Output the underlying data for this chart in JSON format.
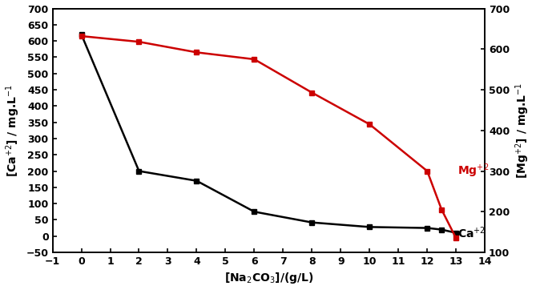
{
  "ca_x": [
    0,
    2,
    4,
    6,
    8,
    10,
    12,
    12.5,
    13
  ],
  "ca_y": [
    620,
    200,
    170,
    75,
    42,
    28,
    25,
    20,
    10
  ],
  "mg_x": [
    0,
    2,
    4,
    6,
    8,
    10,
    12,
    12.5,
    13
  ],
  "mg_y": [
    632,
    618,
    592,
    575,
    493,
    415,
    300,
    205,
    135
  ],
  "ca_color": "#000000",
  "mg_color": "#cc0000",
  "marker": "s",
  "xlabel": "[Na$_2$CO$_3$]/(g/L)",
  "ylabel_left": "[Ca$^{+2}$] / mg.L$^{-1}$",
  "ylabel_right": "[Mg$^{+2}$] / mg.L$^{-1}$",
  "xlim": [
    -1,
    14
  ],
  "ylim_left": [
    -50,
    700
  ],
  "ylim_right": [
    100,
    700
  ],
  "xticks": [
    -1,
    0,
    1,
    2,
    3,
    4,
    5,
    6,
    7,
    8,
    9,
    10,
    11,
    12,
    13,
    14
  ],
  "yticks_left": [
    -50,
    0,
    50,
    100,
    150,
    200,
    250,
    300,
    350,
    400,
    450,
    500,
    550,
    600,
    650,
    700
  ],
  "yticks_right": [
    100,
    200,
    300,
    400,
    500,
    600,
    700
  ],
  "label_ca": "Ca$^{+2}$",
  "label_mg": "Mg$^{+2}$",
  "background_color": "#ffffff",
  "fontsize_ticks": 9,
  "fontsize_label": 10,
  "fontsize_xlabel": 10,
  "linewidth": 1.8,
  "markersize": 5
}
